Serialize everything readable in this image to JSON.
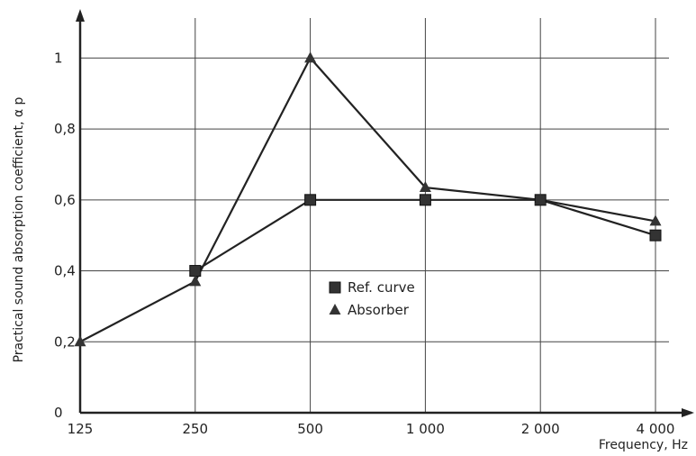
{
  "chart_data": {
    "type": "line",
    "title": "",
    "xlabel": "Frequency, Hz",
    "ylabel": "Practical sound absorption coefficient, α p",
    "categories": [
      "125",
      "250",
      "500",
      "1 000",
      "2 000",
      "4 000"
    ],
    "yticks": [
      "0",
      "0,2",
      "0,4",
      "0,6",
      "0,8",
      "1"
    ],
    "ylim": [
      0,
      1.1
    ],
    "grid": true,
    "legend_position": "center",
    "series": [
      {
        "name": "Ref. curve",
        "marker": "square",
        "values": [
          null,
          0.4,
          0.6,
          0.6,
          0.6,
          0.5
        ]
      },
      {
        "name": "Absorber",
        "marker": "triangle",
        "values": [
          0.2,
          0.37,
          1.0,
          0.635,
          0.6,
          0.54
        ]
      }
    ],
    "colors": {
      "line": "#222222",
      "grid": "#444444",
      "marker": "#333333"
    }
  }
}
